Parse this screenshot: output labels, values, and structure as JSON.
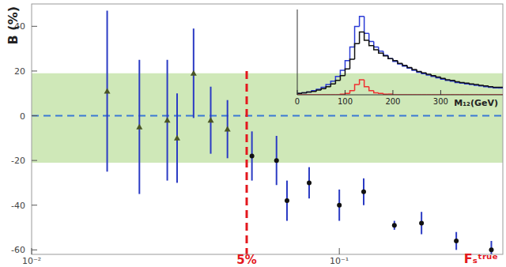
{
  "chart_data": [
    {
      "type": "scatter",
      "ylabel": "B (%)",
      "xlabel": "Fₛᵗʳᵘᵉ",
      "log": "x",
      "grid": false,
      "xlim": [
        0.01,
        0.34
      ],
      "xticks": [
        {
          "value": 0.01,
          "label": "10⁻²"
        },
        {
          "value": 0.1,
          "label": "10⁻¹"
        }
      ],
      "ylim": [
        -62,
        50
      ],
      "yticks": [
        -60,
        -40,
        -20,
        0,
        20,
        40
      ],
      "band": [
        -21,
        19
      ],
      "hline": 0,
      "vline": {
        "value": 0.05,
        "label": "5%"
      },
      "series": [
        {
          "marker": "triangle",
          "color": "#4a5526",
          "x": [
            0.0176,
            0.0224,
            0.0276,
            0.0297,
            0.0336,
            0.0382,
            0.0433
          ],
          "values": [
            11,
            -5,
            -2,
            -10,
            19,
            -2,
            -6
          ],
          "errors": [
            36,
            30,
            27,
            20,
            20,
            15,
            13
          ]
        },
        {
          "marker": "circle",
          "color": "#111111",
          "x": [
            0.052,
            0.0625,
            0.0676,
            0.0798,
            0.1,
            0.12,
            0.151,
            0.185,
            0.24,
            0.312
          ],
          "values": [
            -18,
            -20,
            -38,
            -30,
            -40,
            -34,
            -49,
            -48,
            -56,
            -60
          ],
          "errors": [
            11,
            11,
            9,
            7,
            7,
            6,
            2,
            5,
            4,
            4
          ]
        }
      ]
    },
    {
      "type": "histogram",
      "xlabel": "M₁₂(GeV)",
      "tick_labels": "x",
      "xlim": [
        0,
        430
      ],
      "xticks": [
        0,
        100,
        200,
        300
      ],
      "ylim": [
        0,
        125
      ],
      "bins": [
        0,
        10,
        20,
        30,
        40,
        50,
        60,
        70,
        80,
        90,
        100,
        110,
        120,
        130,
        140,
        150,
        160,
        170,
        180,
        190,
        200,
        210,
        220,
        230,
        240,
        250,
        260,
        270,
        280,
        290,
        300,
        310,
        320,
        330,
        340,
        350,
        360,
        370,
        380,
        390,
        400,
        410,
        420,
        430
      ],
      "series": [
        {
          "color": "#2a3bd6",
          "values": [
            2,
            3,
            4,
            6,
            8,
            11,
            15,
            20,
            27,
            36,
            50,
            70,
            100,
            115,
            90,
            78,
            70,
            64,
            58,
            53,
            49,
            45,
            42,
            39,
            36,
            33,
            31,
            29,
            27,
            25,
            23,
            21,
            20,
            18,
            17,
            16,
            15,
            14,
            13,
            12,
            11,
            10,
            10
          ]
        },
        {
          "color": "#111111",
          "values": [
            2,
            3,
            4,
            5,
            7,
            9,
            12,
            16,
            21,
            28,
            38,
            52,
            75,
            92,
            80,
            72,
            66,
            61,
            57,
            53,
            50,
            46,
            43,
            40,
            37,
            34,
            32,
            30,
            28,
            26,
            24,
            22,
            21,
            19,
            18,
            17,
            16,
            15,
            14,
            13,
            12,
            11,
            11
          ]
        },
        {
          "color": "#f03030",
          "values": [
            0,
            0,
            0,
            0,
            0,
            0,
            0,
            0,
            0,
            1,
            2,
            6,
            15,
            22,
            12,
            6,
            3,
            2,
            1,
            1,
            0,
            0,
            0,
            0,
            0,
            0,
            0,
            0,
            0,
            0,
            0,
            0,
            0,
            0,
            0,
            0,
            0,
            0,
            0,
            0,
            0,
            0,
            0
          ]
        }
      ]
    }
  ]
}
